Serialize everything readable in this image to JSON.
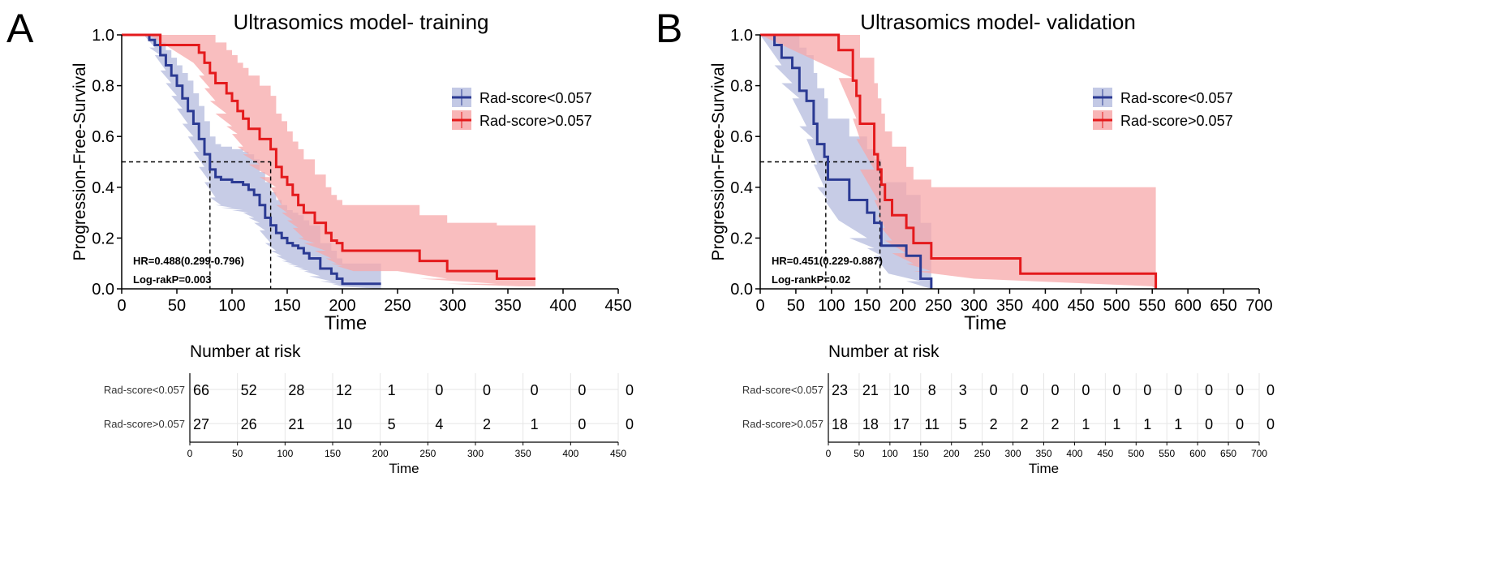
{
  "colors": {
    "low": "#2b3a93",
    "low_band": "#b9bfe0",
    "high": "#e41a1c",
    "high_band": "#f7a8a9",
    "axis": "#000000",
    "grid": "#e6e6e6"
  },
  "chart_data": [
    {
      "type": "line",
      "panel_letter": "A",
      "title": "Ultrasomics model- training",
      "xlabel": "Time",
      "ylabel": "Progression-Free-Survival",
      "xlim": [
        0,
        450
      ],
      "ylim": [
        0,
        1
      ],
      "xticks": [
        "0",
        "50",
        "100",
        "150",
        "200",
        "250",
        "300",
        "350",
        "400",
        "450"
      ],
      "yticks": [
        "0.0",
        "0.2",
        "0.4",
        "0.6",
        "0.8",
        "1.0"
      ],
      "median_line_y": 0.5,
      "medians": [
        80,
        135
      ],
      "annotations": [
        "HR=0.488(0.299-0.796)",
        "Log-rakP=0.003"
      ],
      "legend_position": "top-right",
      "series": [
        {
          "name": "Rad-score<0.057",
          "key": "low",
          "x": [
            0,
            20,
            25,
            30,
            35,
            40,
            45,
            50,
            55,
            60,
            65,
            70,
            75,
            80,
            85,
            90,
            100,
            110,
            115,
            120,
            125,
            130,
            135,
            140,
            145,
            150,
            155,
            160,
            165,
            170,
            180,
            190,
            195,
            200,
            235
          ],
          "y": [
            1.0,
            1.0,
            0.98,
            0.96,
            0.92,
            0.88,
            0.84,
            0.8,
            0.75,
            0.7,
            0.65,
            0.59,
            0.53,
            0.47,
            0.44,
            0.43,
            0.42,
            0.41,
            0.39,
            0.37,
            0.33,
            0.28,
            0.25,
            0.22,
            0.2,
            0.18,
            0.17,
            0.16,
            0.14,
            0.12,
            0.08,
            0.06,
            0.04,
            0.02,
            0.02
          ],
          "lo": [
            1.0,
            1.0,
            0.95,
            0.92,
            0.86,
            0.81,
            0.76,
            0.71,
            0.65,
            0.6,
            0.54,
            0.48,
            0.42,
            0.36,
            0.33,
            0.32,
            0.31,
            0.3,
            0.28,
            0.26,
            0.23,
            0.18,
            0.15,
            0.13,
            0.11,
            0.1,
            0.09,
            0.08,
            0.07,
            0.05,
            0.03,
            0.02,
            0.01,
            0.0,
            0.0
          ],
          "hi": [
            1.0,
            1.0,
            1.0,
            1.0,
            0.97,
            0.94,
            0.91,
            0.88,
            0.85,
            0.82,
            0.77,
            0.72,
            0.66,
            0.6,
            0.57,
            0.56,
            0.55,
            0.54,
            0.53,
            0.51,
            0.46,
            0.42,
            0.38,
            0.35,
            0.33,
            0.31,
            0.3,
            0.29,
            0.27,
            0.25,
            0.18,
            0.15,
            0.12,
            0.1,
            0.1
          ]
        },
        {
          "name": "Rad-score>0.057",
          "key": "high",
          "x": [
            0,
            25,
            35,
            65,
            70,
            75,
            80,
            85,
            95,
            100,
            105,
            110,
            115,
            125,
            135,
            140,
            145,
            150,
            155,
            160,
            165,
            175,
            185,
            190,
            195,
            200,
            210,
            220,
            250,
            270,
            295,
            340,
            360,
            375
          ],
          "y": [
            1.0,
            1.0,
            0.96,
            0.96,
            0.93,
            0.89,
            0.85,
            0.81,
            0.77,
            0.74,
            0.7,
            0.67,
            0.63,
            0.59,
            0.55,
            0.48,
            0.44,
            0.41,
            0.37,
            0.33,
            0.3,
            0.26,
            0.22,
            0.19,
            0.18,
            0.15,
            0.15,
            0.15,
            0.15,
            0.11,
            0.07,
            0.04,
            0.04,
            0.04
          ],
          "lo": [
            1.0,
            1.0,
            0.89,
            0.89,
            0.84,
            0.79,
            0.74,
            0.69,
            0.64,
            0.61,
            0.56,
            0.53,
            0.49,
            0.44,
            0.4,
            0.33,
            0.3,
            0.27,
            0.24,
            0.2,
            0.18,
            0.15,
            0.12,
            0.1,
            0.09,
            0.07,
            0.07,
            0.07,
            0.07,
            0.04,
            0.02,
            0.01,
            0.01,
            0.01
          ],
          "hi": [
            1.0,
            1.0,
            1.0,
            1.0,
            1.0,
            1.0,
            1.0,
            0.97,
            0.94,
            0.92,
            0.89,
            0.87,
            0.84,
            0.8,
            0.76,
            0.69,
            0.66,
            0.62,
            0.58,
            0.55,
            0.51,
            0.45,
            0.4,
            0.37,
            0.35,
            0.33,
            0.33,
            0.33,
            0.33,
            0.29,
            0.26,
            0.25,
            0.25,
            0.25
          ]
        }
      ],
      "risk_table": {
        "title": "Number at risk",
        "xlabel": "Time",
        "times": [
          "0",
          "50",
          "100",
          "150",
          "200",
          "250",
          "300",
          "350",
          "400",
          "450"
        ],
        "rows": [
          {
            "label": "Rad-score<0.057",
            "key": "low",
            "counts": [
              "66",
              "52",
              "28",
              "12",
              "1",
              "0",
              "0",
              "0",
              "0",
              "0"
            ]
          },
          {
            "label": "Rad-score>0.057",
            "key": "high",
            "counts": [
              "27",
              "26",
              "21",
              "10",
              "5",
              "4",
              "2",
              "1",
              "0",
              "0"
            ]
          }
        ]
      }
    },
    {
      "type": "line",
      "panel_letter": "B",
      "title": "Ultrasomics model- validation",
      "xlabel": "Time",
      "ylabel": "Progression-Free-Survival",
      "xlim": [
        0,
        700
      ],
      "ylim": [
        0,
        1
      ],
      "xticks": [
        "0",
        "50",
        "100",
        "150",
        "200",
        "250",
        "300",
        "350",
        "400",
        "450",
        "500",
        "550",
        "600",
        "650",
        "700"
      ],
      "yticks": [
        "0.0",
        "0.2",
        "0.4",
        "0.6",
        "0.8",
        "1.0"
      ],
      "median_line_y": 0.5,
      "medians": [
        92,
        168
      ],
      "annotations": [
        "HR=0.451(0.229-0.887)",
        "Log-rankP=0.02"
      ],
      "legend_position": "top-right",
      "series": [
        {
          "name": "Rad-score<0.057",
          "key": "low",
          "x": [
            0,
            20,
            30,
            45,
            55,
            65,
            75,
            80,
            90,
            95,
            110,
            125,
            150,
            160,
            170,
            180,
            205,
            225,
            240
          ],
          "y": [
            1.0,
            0.96,
            0.91,
            0.87,
            0.78,
            0.74,
            0.65,
            0.57,
            0.52,
            0.43,
            0.43,
            0.35,
            0.3,
            0.26,
            0.17,
            0.17,
            0.13,
            0.04,
            0.0
          ],
          "lo": [
            1.0,
            0.88,
            0.81,
            0.75,
            0.64,
            0.59,
            0.49,
            0.4,
            0.35,
            0.27,
            0.27,
            0.2,
            0.16,
            0.13,
            0.06,
            0.06,
            0.03,
            0.0,
            0.0
          ],
          "hi": [
            1.0,
            1.0,
            1.0,
            1.0,
            0.95,
            0.92,
            0.85,
            0.79,
            0.75,
            0.67,
            0.67,
            0.6,
            0.55,
            0.51,
            0.42,
            0.42,
            0.37,
            0.26,
            0.26
          ]
        },
        {
          "name": "Rad-score>0.057",
          "key": "high",
          "x": [
            0,
            110,
            130,
            135,
            140,
            160,
            165,
            170,
            175,
            185,
            205,
            215,
            240,
            300,
            365,
            550,
            555
          ],
          "y": [
            1.0,
            0.94,
            0.82,
            0.76,
            0.65,
            0.53,
            0.47,
            0.41,
            0.35,
            0.29,
            0.24,
            0.18,
            0.12,
            0.12,
            0.06,
            0.06,
            0.0
          ],
          "lo": [
            1.0,
            0.83,
            0.67,
            0.59,
            0.47,
            0.35,
            0.29,
            0.24,
            0.19,
            0.14,
            0.1,
            0.07,
            0.04,
            0.04,
            0.01,
            0.01,
            0.0
          ],
          "hi": [
            1.0,
            1.0,
            1.0,
            1.0,
            0.91,
            0.81,
            0.75,
            0.69,
            0.62,
            0.56,
            0.48,
            0.43,
            0.4,
            0.4,
            0.4,
            0.4,
            0.4
          ]
        }
      ],
      "risk_table": {
        "title": "Number at risk",
        "xlabel": "Time",
        "times": [
          "0",
          "50",
          "100",
          "150",
          "200",
          "250",
          "300",
          "350",
          "400",
          "450",
          "500",
          "550",
          "600",
          "650",
          "700"
        ],
        "rows": [
          {
            "label": "Rad-score<0.057",
            "key": "low",
            "counts": [
              "23",
              "21",
              "10",
              "8",
              "3",
              "0",
              "0",
              "0",
              "0",
              "0",
              "0",
              "0",
              "0",
              "0",
              "0"
            ]
          },
          {
            "label": "Rad-score>0.057",
            "key": "high",
            "counts": [
              "18",
              "18",
              "17",
              "11",
              "5",
              "2",
              "2",
              "2",
              "1",
              "1",
              "1",
              "1",
              "0",
              "0",
              "0"
            ]
          }
        ]
      }
    }
  ]
}
